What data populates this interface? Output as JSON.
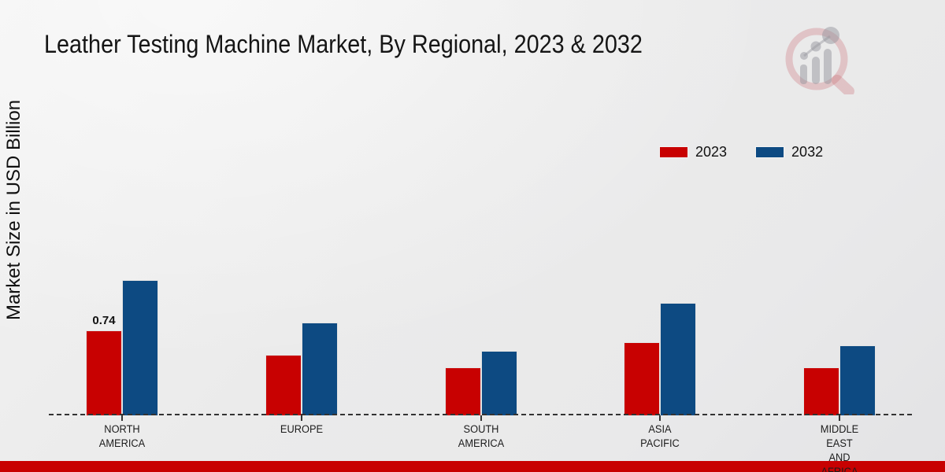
{
  "header": {
    "title": "Leather Testing Machine Market, By Regional, 2023 & 2032"
  },
  "watermark": {
    "icon": "magnifier-bar-chart-logo"
  },
  "footer": {
    "bar_color": "#C80101"
  },
  "chart_data": {
    "type": "bar",
    "title": "Leather Testing Machine Market, By Regional, 2023 & 2032",
    "xlabel": "",
    "ylabel": "Market Size in USD Billion",
    "categories": [
      "NORTH AMERICA",
      "EUROPE",
      "SOUTH AMERICA",
      "ASIA PACIFIC",
      "MIDDLE EAST AND AFRICA"
    ],
    "category_label_lines": [
      [
        "NORTH",
        "AMERICA"
      ],
      [
        "EUROPE"
      ],
      [
        "SOUTH",
        "AMERICA"
      ],
      [
        "ASIA",
        "PACIFIC"
      ],
      [
        "MIDDLE",
        "EAST",
        "AND",
        "AFRICA"
      ]
    ],
    "series": [
      {
        "name": "2023",
        "color": "#C80101",
        "values": [
          0.74,
          0.53,
          0.42,
          0.64,
          0.42
        ]
      },
      {
        "name": "2032",
        "color": "#0D4A82",
        "values": [
          1.18,
          0.81,
          0.56,
          0.98,
          0.61
        ]
      }
    ],
    "data_labels": [
      {
        "series_index": 0,
        "category_index": 0,
        "text": "0.74"
      }
    ],
    "ylim": [
      0,
      1.4
    ],
    "grid": false,
    "y_axis_ticks_visible": false,
    "baseline_style": "dashed",
    "legend_position": "top-right"
  }
}
